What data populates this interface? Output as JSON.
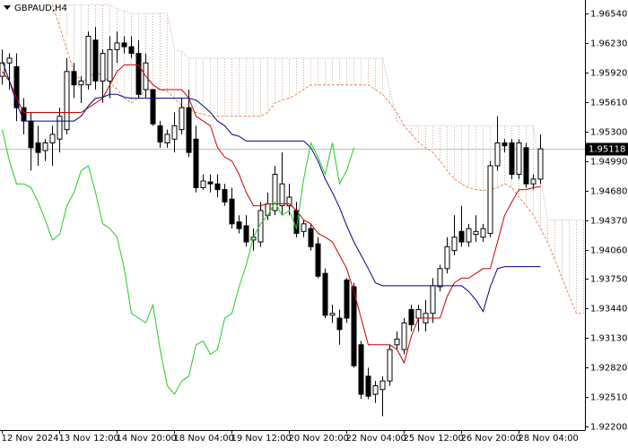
{
  "chart_data": {
    "type": "candlestick",
    "title": "GBPAUD,H4",
    "categories": [
      "12 Nov 2024",
      null,
      null,
      null,
      null,
      null,
      null,
      null,
      "13 Nov 12:00",
      null,
      null,
      null,
      null,
      null,
      null,
      null,
      "14 Nov 20:00",
      null,
      null,
      null,
      null,
      null,
      null,
      null,
      "18 Nov 04:00",
      null,
      null,
      null,
      null,
      null,
      null,
      null,
      "19 Nov 12:00",
      null,
      null,
      null,
      null,
      null,
      null,
      null,
      "20 Nov 20:00",
      null,
      null,
      null,
      null,
      null,
      null,
      null,
      "22 Nov 04:00",
      null,
      null,
      null,
      null,
      null,
      null,
      null,
      "25 Nov 12:00",
      null,
      null,
      null,
      null,
      null,
      null,
      null,
      "26 Nov 20:00",
      null,
      null,
      null,
      null,
      null,
      null,
      null,
      "28 Nov 04:00",
      null,
      null,
      null,
      null,
      null,
      null,
      null,
      null,
      null
    ],
    "open": [
      1.9588,
      1.9602,
      1.9598,
      1.9555,
      1.9541,
      1.9518,
      1.951,
      1.9518,
      1.9522,
      1.9532,
      1.9593,
      1.9579,
      1.9579,
      1.9626,
      1.9583,
      1.9583,
      1.9616,
      1.9623,
      1.9619,
      1.9612,
      1.9574,
      1.9574,
      1.9536,
      1.9518,
      1.9522,
      1.9532,
      1.9555,
      1.9522,
      1.9471,
      1.9477,
      1.9475,
      1.9469,
      1.9459,
      1.9435,
      1.9431,
      1.9416,
      1.9414,
      1.9442,
      1.9447,
      1.9452,
      1.9452,
      1.9447,
      1.9425,
      1.9428,
      1.9412,
      1.9381,
      1.9337,
      1.9334,
      1.9374,
      1.9367,
      1.9306,
      1.9273,
      1.9254,
      1.9259,
      1.9268,
      1.9306,
      1.9301,
      1.9343,
      1.9334,
      1.9329,
      1.9339,
      1.9367,
      1.9386,
      1.9405,
      1.9425,
      1.9414,
      1.9422,
      1.9419,
      1.9423,
      1.9494,
      1.9518,
      1.9518,
      1.9485,
      1.9513,
      1.9475,
      1.948,
      null,
      null,
      null,
      null,
      null,
      null
    ],
    "high": [
      1.9616,
      1.9612,
      1.9612,
      1.9565,
      1.955,
      1.9536,
      1.9522,
      1.9536,
      1.9555,
      1.9607,
      1.9602,
      1.9588,
      1.9635,
      1.964,
      1.9616,
      1.963,
      1.9635,
      1.963,
      1.963,
      1.9626,
      1.9612,
      1.9574,
      1.9541,
      1.9532,
      1.955,
      1.9565,
      1.9574,
      1.9536,
      1.9485,
      1.9485,
      1.9485,
      1.9475,
      1.9471,
      1.9442,
      1.9442,
      1.9428,
      1.9456,
      1.9466,
      1.9494,
      1.9508,
      1.9475,
      1.9456,
      1.9437,
      1.9433,
      1.9419,
      1.9386,
      1.9348,
      1.9343,
      1.9376,
      1.9371,
      1.931,
      1.9282,
      1.9268,
      1.9273,
      1.9306,
      1.932,
      1.9334,
      1.9348,
      1.9348,
      1.9353,
      1.9376,
      1.939,
      1.9419,
      1.9442,
      1.9452,
      1.9433,
      1.9442,
      1.9433,
      1.9499,
      1.9546,
      1.9522,
      1.9522,
      1.9522,
      1.9518,
      1.9485,
      1.9527,
      null,
      null,
      null,
      null,
      null,
      null
    ],
    "low": [
      1.9579,
      1.9574,
      1.9541,
      1.9527,
      1.9489,
      1.9494,
      1.9499,
      1.9494,
      1.9508,
      1.9527,
      1.9565,
      1.956,
      1.9574,
      1.9574,
      1.956,
      1.9565,
      1.9602,
      1.9612,
      1.9607,
      1.9565,
      1.9565,
      1.9536,
      1.9513,
      1.9513,
      1.9508,
      1.9527,
      1.9503,
      1.9466,
      1.9469,
      1.9466,
      1.9461,
      1.9452,
      1.9428,
      1.9423,
      1.9409,
      1.9405,
      1.9409,
      1.9437,
      1.9442,
      1.9442,
      1.9442,
      1.9419,
      1.9419,
      1.9405,
      1.9376,
      1.9334,
      1.9329,
      1.9306,
      1.9329,
      1.9282,
      1.9249,
      1.9249,
      1.9245,
      1.9231,
      1.9263,
      1.9301,
      1.9296,
      1.932,
      1.932,
      1.932,
      1.9329,
      1.9362,
      1.9381,
      1.94,
      1.9409,
      1.9409,
      1.9414,
      1.9414,
      1.9419,
      1.9489,
      1.9508,
      1.948,
      1.948,
      1.9471,
      1.9469,
      1.9475,
      null,
      null,
      null,
      null,
      null,
      null
    ],
    "close": [
      1.9602,
      1.9607,
      1.9555,
      1.9541,
      1.9513,
      1.9508,
      1.9518,
      1.9527,
      1.9546,
      1.9593,
      1.9579,
      1.9583,
      1.963,
      1.9583,
      1.9612,
      1.9616,
      1.9623,
      1.9619,
      1.9612,
      1.9569,
      1.9602,
      1.9538,
      1.9519,
      1.9527,
      1.9536,
      1.9555,
      1.9508,
      1.9471,
      1.9478,
      1.9475,
      1.9469,
      1.9456,
      1.9433,
      1.9428,
      1.9414,
      1.9419,
      1.9447,
      1.9454,
      1.9485,
      1.9475,
      1.9461,
      1.9423,
      1.9433,
      1.9409,
      1.9378,
      1.9337,
      1.9339,
      1.9322,
      1.9334,
      1.9284,
      1.9254,
      1.9252,
      1.9263,
      1.9268,
      1.9301,
      1.9312,
      1.9329,
      1.9327,
      1.9343,
      1.9339,
      1.9368,
      1.9386,
      1.9409,
      1.9419,
      1.9414,
      1.9428,
      1.9425,
      1.9428,
      1.9494,
      1.9518,
      1.9515,
      1.9485,
      1.9518,
      1.9475,
      1.948,
      1.95118,
      null,
      null,
      null,
      null,
      null,
      null
    ],
    "up_color": "#ffffff",
    "down_color": "#000000",
    "series": [
      {
        "color": "#cc0000",
        "values": [
          1.9593,
          1.9583,
          1.9565,
          1.955,
          1.955,
          1.955,
          1.955,
          1.955,
          1.955,
          1.955,
          1.955,
          1.955,
          1.9555,
          1.956,
          1.9565,
          1.9579,
          1.9593,
          1.96,
          1.96,
          1.96,
          1.9588,
          1.9579,
          1.9574,
          1.9574,
          1.9574,
          1.9574,
          1.9565,
          1.9546,
          1.9541,
          1.9536,
          1.9513,
          1.9503,
          1.9499,
          1.9485,
          1.9466,
          1.9452,
          1.9452,
          1.9454,
          1.9454,
          1.9454,
          1.9454,
          1.9447,
          1.9437,
          1.9433,
          1.9423,
          1.9419,
          1.9414,
          1.94,
          1.9386,
          1.9362,
          1.9334,
          1.9306,
          1.9306,
          1.9306,
          1.9306,
          1.9301,
          1.9287,
          1.9315,
          1.9334,
          1.9334,
          1.9334,
          1.9334,
          1.9357,
          1.9371,
          1.9376,
          1.9376,
          1.9381,
          1.9386,
          1.9386,
          1.9414,
          1.9442,
          1.9456,
          1.9469,
          1.9469,
          1.9471,
          1.9472,
          null,
          null,
          null,
          null,
          null,
          null
        ]
      },
      {
        "color": "#00008b",
        "values": [
          1.9604,
          1.9583,
          1.956,
          1.9541,
          1.9541,
          1.9541,
          1.9541,
          1.9541,
          1.9541,
          1.9541,
          1.9541,
          1.9546,
          1.9557,
          1.9565,
          1.9566,
          1.9569,
          1.9569,
          1.9566,
          1.9565,
          1.9565,
          1.9565,
          1.9565,
          1.9565,
          1.9565,
          1.9565,
          1.9565,
          1.9565,
          1.9563,
          1.9557,
          1.955,
          1.9541,
          1.9536,
          1.9527,
          1.9525,
          1.952,
          1.952,
          1.952,
          1.952,
          1.952,
          1.952,
          1.952,
          1.952,
          1.952,
          1.9513,
          1.9499,
          1.948,
          1.9466,
          1.945,
          1.9431,
          1.9414,
          1.94,
          1.9386,
          1.9371,
          1.9368,
          1.9368,
          1.9368,
          1.9368,
          1.9368,
          1.9368,
          1.9368,
          1.9368,
          1.9368,
          1.9368,
          1.9368,
          1.9368,
          1.9362,
          1.9353,
          1.9341,
          1.9367,
          1.9386,
          1.9388,
          1.9388,
          1.9388,
          1.9388,
          1.9388,
          1.9388,
          null,
          null,
          null,
          null,
          null,
          null
        ]
      },
      {
        "color": "#22cc22",
        "values": [
          1.9532,
          1.9499,
          1.9475,
          1.9475,
          1.9471,
          1.9456,
          1.9437,
          1.9416,
          1.9422,
          1.9452,
          1.9466,
          1.9489,
          1.9494,
          1.9466,
          1.9433,
          1.9428,
          1.9419,
          1.9386,
          1.9339,
          1.9334,
          1.9329,
          1.9348,
          1.9301,
          1.9263,
          1.9254,
          1.9268,
          1.9273,
          1.9306,
          1.931,
          1.9296,
          1.9301,
          1.9334,
          1.9339,
          1.9367,
          1.939,
          1.9419,
          1.9433,
          1.9442,
          1.9456,
          1.9442,
          1.9447,
          1.9428,
          1.948,
          1.9518,
          1.9503,
          1.9485,
          1.9518,
          1.9475,
          1.9489,
          1.9513,
          null,
          null,
          null,
          null,
          null,
          null,
          null,
          null,
          null,
          null,
          null,
          null,
          null,
          null,
          null,
          null,
          null,
          null,
          null,
          null,
          null,
          null,
          null,
          null,
          null,
          null,
          null,
          null,
          null,
          null,
          null,
          null
        ]
      },
      {
        "color": "#e8875a",
        "dash": "3 2",
        "values": [
          null,
          null,
          null,
          null,
          null,
          null,
          null,
          1.9663,
          1.964,
          1.9616,
          1.9593,
          1.9583,
          1.9585,
          1.9593,
          1.9588,
          1.9582,
          1.9574,
          1.9565,
          1.956,
          1.9566,
          1.9574,
          1.9574,
          1.9574,
          1.9572,
          1.9565,
          1.9557,
          1.9553,
          1.955,
          1.9548,
          1.9546,
          1.9546,
          1.9546,
          1.9546,
          1.9546,
          1.9546,
          1.9546,
          1.9546,
          1.955,
          1.956,
          1.9563,
          1.9565,
          1.9569,
          1.9574,
          1.9579,
          1.9579,
          1.9579,
          1.9579,
          1.9579,
          1.9579,
          1.9579,
          1.9579,
          1.9579,
          1.9574,
          1.9569,
          1.956,
          1.955,
          1.9536,
          1.9527,
          1.9519,
          1.9513,
          1.9508,
          1.9499,
          1.9489,
          1.948,
          1.9475,
          1.9471,
          1.9469,
          1.9468,
          1.9469,
          1.9471,
          1.9475,
          1.9471,
          1.9461,
          1.9452,
          1.9442,
          1.9428,
          1.9414,
          1.9395,
          1.9376,
          1.9357,
          1.9339,
          1.9339
        ]
      },
      {
        "color": "#c9a898",
        "dash": "1 2",
        "values": [
          null,
          null,
          null,
          null,
          null,
          null,
          null,
          1.9663,
          1.9663,
          1.9663,
          1.9663,
          1.9663,
          1.9663,
          1.9663,
          1.9663,
          1.9663,
          1.9659,
          1.9657,
          1.9654,
          1.9654,
          1.9654,
          1.9654,
          1.9654,
          1.9654,
          1.9616,
          1.9614,
          1.9607,
          1.9607,
          1.9607,
          1.9607,
          1.9607,
          1.9607,
          1.9607,
          1.9607,
          1.9607,
          1.9607,
          1.9607,
          1.9607,
          1.9607,
          1.9607,
          1.9607,
          1.9607,
          1.9607,
          1.9607,
          1.9607,
          1.9607,
          1.9607,
          1.9607,
          1.9607,
          1.9607,
          1.9607,
          1.9607,
          1.9607,
          1.9607,
          1.9574,
          1.9541,
          1.9536,
          1.9536,
          1.9536,
          1.9536,
          1.9536,
          1.9536,
          1.9536,
          1.9536,
          1.9536,
          1.9536,
          1.9536,
          1.9536,
          1.9536,
          1.9536,
          1.9536,
          1.9536,
          1.9536,
          1.9536,
          1.9536,
          1.948,
          1.9437,
          1.9437,
          1.9437,
          1.9437,
          1.9437,
          1.9437
        ]
      }
    ],
    "last_price": 1.95118,
    "ylim": [
      1.92164,
      1.96681
    ],
    "yticks": [
      {
        "value": 1.9654,
        "label": "1.96540"
      },
      {
        "value": 1.9623,
        "label": "1.96230"
      },
      {
        "value": 1.9592,
        "label": "1.95920"
      },
      {
        "value": 1.9561,
        "label": "1.95610"
      },
      {
        "value": 1.953,
        "label": "1.95300"
      },
      {
        "value": 1.9499,
        "label": "1.94990"
      },
      {
        "value": 1.9468,
        "label": "1.94680"
      },
      {
        "value": 1.9437,
        "label": "1.94370"
      },
      {
        "value": 1.9406,
        "label": "1.94060"
      },
      {
        "value": 1.9375,
        "label": "1.93750"
      },
      {
        "value": 1.9344,
        "label": "1.93440"
      },
      {
        "value": 1.9313,
        "label": "1.93130"
      },
      {
        "value": 1.9282,
        "label": "1.92820"
      },
      {
        "value": 1.9251,
        "label": "1.92510"
      },
      {
        "value": 1.922,
        "label": "1.92200"
      }
    ],
    "grid": false
  }
}
